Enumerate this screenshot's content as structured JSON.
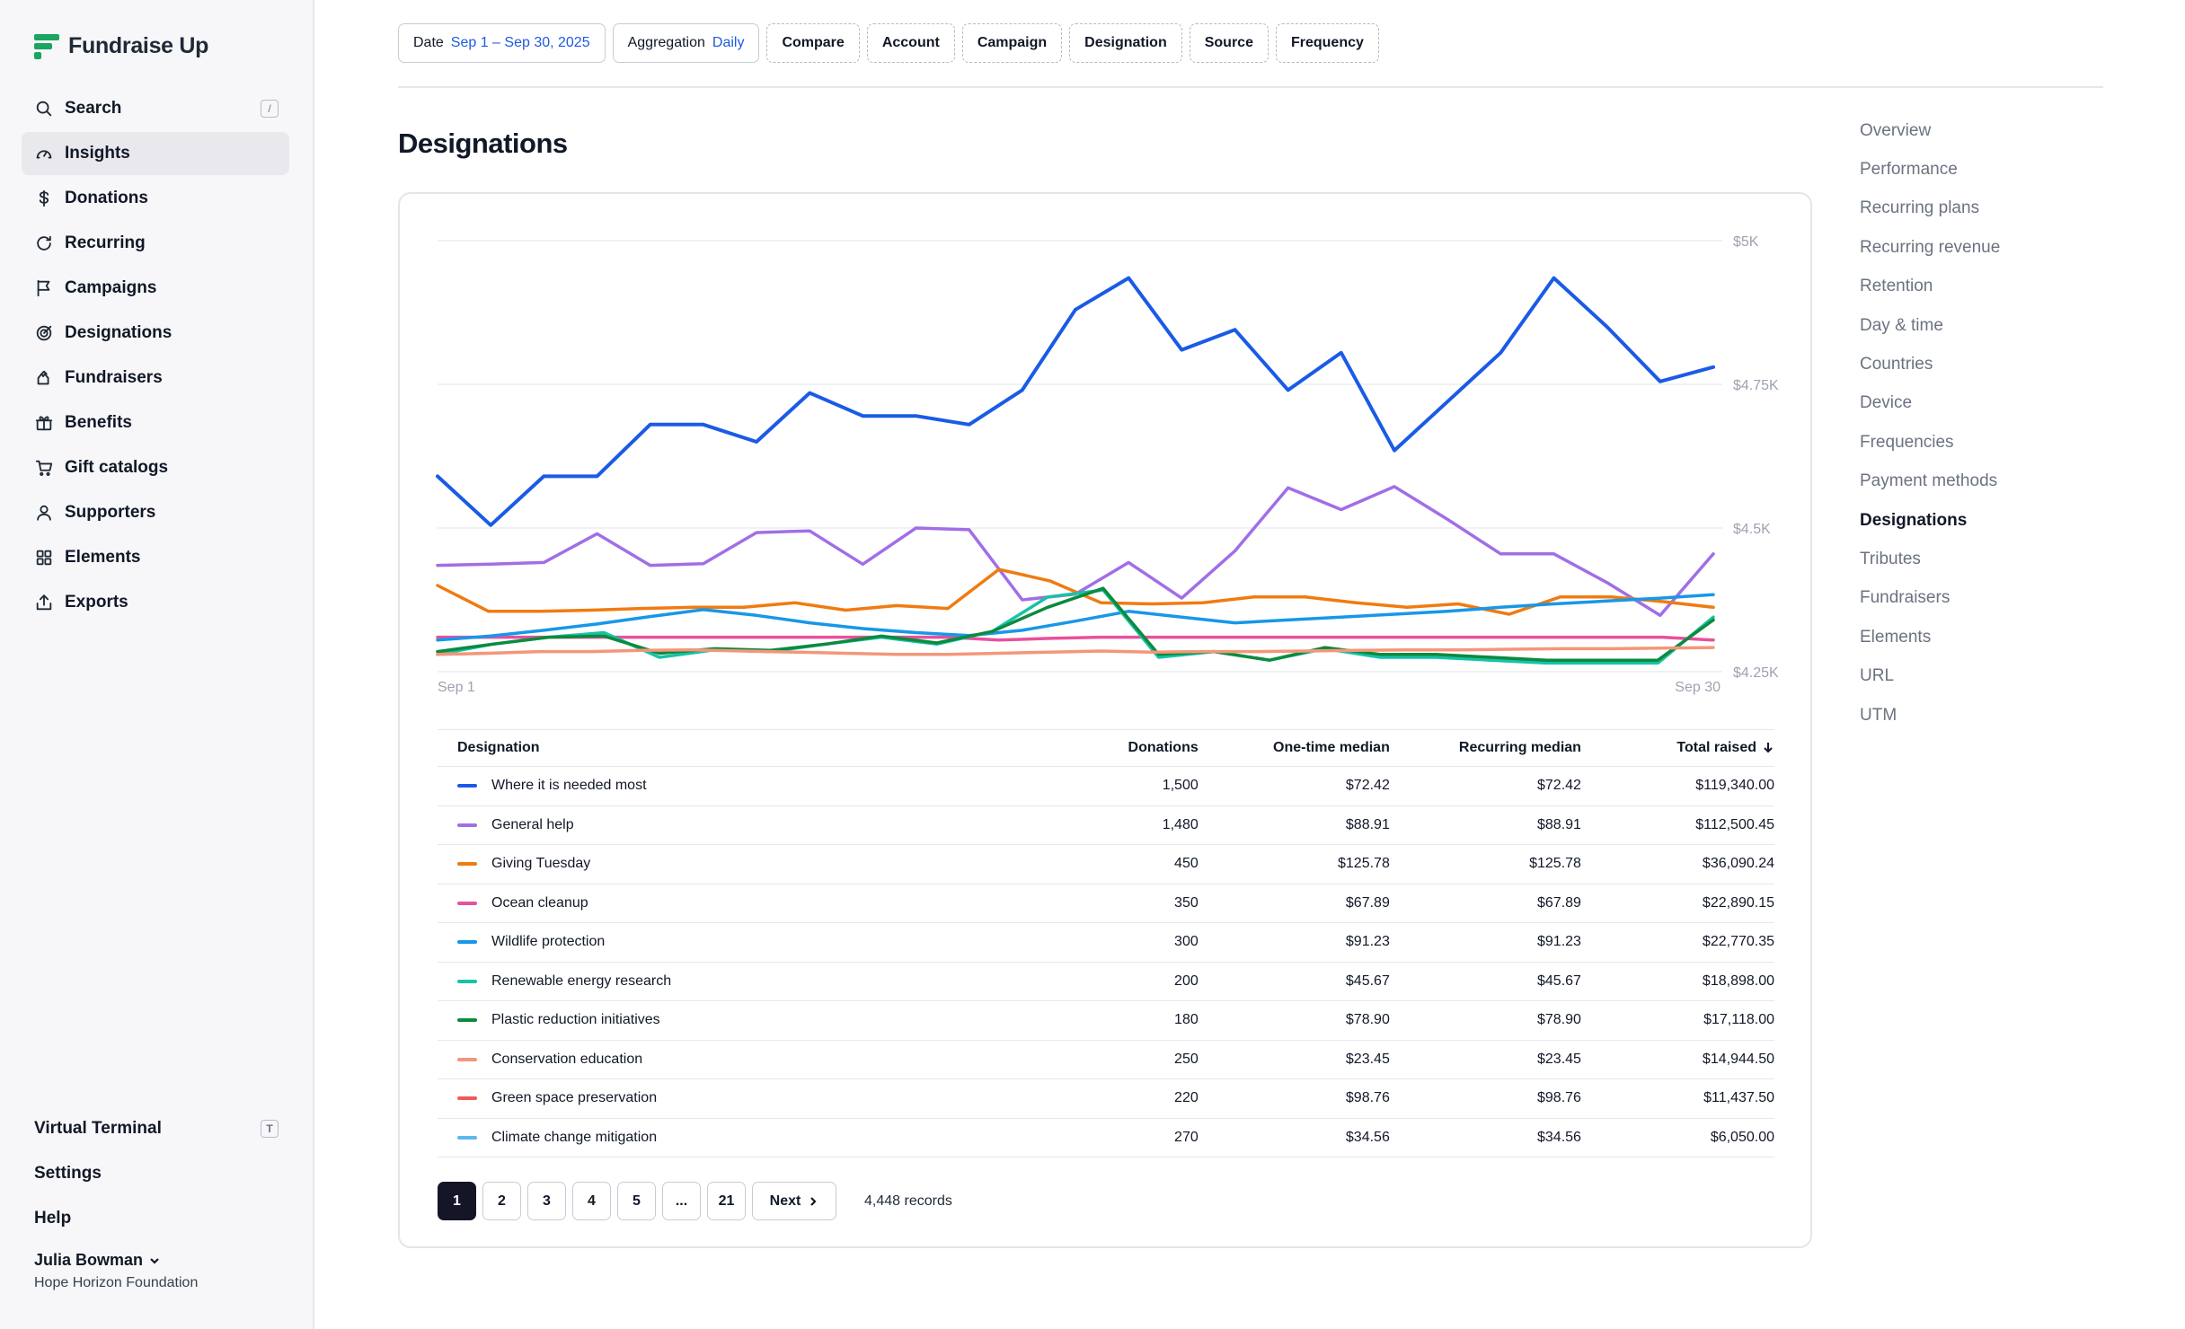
{
  "brand": {
    "name": "Fundraise Up",
    "color": "#1aa660"
  },
  "sidebar": {
    "items": [
      {
        "label": "Search",
        "icon": "search-icon",
        "kbd": "/"
      },
      {
        "label": "Insights",
        "icon": "gauge-icon",
        "active": true
      },
      {
        "label": "Donations",
        "icon": "dollar-icon"
      },
      {
        "label": "Recurring",
        "icon": "refresh-icon"
      },
      {
        "label": "Campaigns",
        "icon": "flag-icon"
      },
      {
        "label": "Designations",
        "icon": "target-icon"
      },
      {
        "label": "Fundraisers",
        "icon": "heart-hand-icon"
      },
      {
        "label": "Benefits",
        "icon": "gift-icon"
      },
      {
        "label": "Gift catalogs",
        "icon": "cart-icon"
      },
      {
        "label": "Supporters",
        "icon": "user-icon"
      },
      {
        "label": "Elements",
        "icon": "grid-icon"
      },
      {
        "label": "Exports",
        "icon": "export-icon"
      }
    ],
    "bottom": {
      "virtual_terminal": "Virtual Terminal",
      "virtual_terminal_kbd": "T",
      "settings": "Settings",
      "help": "Help"
    },
    "user": {
      "name": "Julia Bowman",
      "org": "Hope Horizon Foundation"
    }
  },
  "filters": {
    "date_label": "Date",
    "date_value": "Sep 1 – Sep 30, 2025",
    "aggregation_label": "Aggregation",
    "aggregation_value": "Daily",
    "compare": "Compare",
    "account": "Account",
    "campaign": "Campaign",
    "designation": "Designation",
    "source": "Source",
    "frequency": "Frequency"
  },
  "page_title": "Designations",
  "chart_data": {
    "type": "line",
    "x_start_label": "Sep 1",
    "x_end_label": "Sep 30",
    "y_ticks": [
      "$5K",
      "$4.75K",
      "$4.5K",
      "$4.25K"
    ],
    "ylim": [
      4250,
      5000
    ],
    "grid": true,
    "series": [
      {
        "name": "Where it is needed most",
        "color": "#1a5be6",
        "values": [
          4590,
          4505,
          4590,
          4590,
          4680,
          4680,
          4650,
          4735,
          4695,
          4695,
          4680,
          4740,
          4880,
          4935,
          4810,
          4845,
          4740,
          4805,
          4635,
          4720,
          4805,
          4935,
          4850,
          4755,
          4780
        ]
      },
      {
        "name": "General help",
        "color": "#a16ee6",
        "values": [
          4435,
          4437,
          4440,
          4490,
          4435,
          4438,
          4492,
          4495,
          4437,
          4500,
          4497,
          4375,
          4385,
          4440,
          4378,
          4460,
          4570,
          4532,
          4572,
          4515,
          4455,
          4455,
          4405,
          4348,
          4455
        ]
      },
      {
        "name": "Giving Tuesday",
        "color": "#f07b11",
        "values": [
          4400,
          4355,
          4355,
          4357,
          4360,
          4362,
          4362,
          4370,
          4357,
          4365,
          4360,
          4428,
          4408,
          4370,
          4368,
          4370,
          4380,
          4380,
          4370,
          4362,
          4368,
          4350,
          4380,
          4380,
          4372,
          4362
        ]
      },
      {
        "name": "Ocean cleanup",
        "color": "#e8509c",
        "values": [
          4310,
          4310,
          4310,
          4310,
          4310,
          4310,
          4310,
          4310,
          4310,
          4310,
          4310,
          4305,
          4308,
          4310,
          4310,
          4310,
          4310,
          4310,
          4310,
          4310,
          4310,
          4310,
          4310,
          4310,
          4310,
          4305
        ]
      },
      {
        "name": "Wildlife protection",
        "color": "#1897e8",
        "values": [
          4305,
          4312,
          4322,
          4333,
          4346,
          4358,
          4348,
          4335,
          4325,
          4318,
          4313,
          4322,
          4338,
          4355,
          4345,
          4335,
          4340,
          4345,
          4350,
          4355,
          4362,
          4368,
          4373,
          4378,
          4384
        ]
      },
      {
        "name": "Renewable energy research",
        "color": "#17c2a8",
        "values": [
          4280,
          4298,
          4310,
          4318,
          4275,
          4288,
          4285,
          4298,
          4310,
          4298,
          4320,
          4380,
          4392,
          4275,
          4285,
          4270,
          4290,
          4275,
          4275,
          4270,
          4265,
          4265,
          4265,
          4345
        ]
      },
      {
        "name": "Plastic reduction initiatives",
        "color": "#0d8a3d",
        "values": [
          4285,
          4298,
          4310,
          4312,
          4282,
          4290,
          4287,
          4298,
          4312,
          4300,
          4320,
          4362,
          4395,
          4280,
          4285,
          4270,
          4292,
          4280,
          4280,
          4275,
          4270,
          4270,
          4270,
          4340
        ]
      },
      {
        "name": "Conservation education",
        "color": "#f4967a",
        "values": [
          4280,
          4282,
          4285,
          4285,
          4287,
          4288,
          4286,
          4284,
          4282,
          4280,
          4280,
          4282,
          4284,
          4286,
          4284,
          4285,
          4285,
          4286,
          4287,
          4288,
          4288,
          4289,
          4290,
          4290,
          4291,
          4292
        ]
      },
      {
        "name": "Green space preservation",
        "color": "#f05a5a",
        "values": []
      },
      {
        "name": "Climate change mitigation",
        "color": "#5db8ee",
        "values": []
      }
    ]
  },
  "table": {
    "headers": {
      "designation": "Designation",
      "donations": "Donations",
      "one_time": "One-time median",
      "recurring": "Recurring median",
      "total": "Total raised"
    },
    "rows": [
      {
        "name": "Where it is needed most",
        "color": "#1a5be6",
        "donations": "1,500",
        "one_time": "$72.42",
        "recurring": "$72.42",
        "total": "$119,340.00"
      },
      {
        "name": "General help",
        "color": "#a16ee6",
        "donations": "1,480",
        "one_time": "$88.91",
        "recurring": "$88.91",
        "total": "$112,500.45"
      },
      {
        "name": "Giving Tuesday",
        "color": "#f07b11",
        "donations": "450",
        "one_time": "$125.78",
        "recurring": "$125.78",
        "total": "$36,090.24"
      },
      {
        "name": "Ocean cleanup",
        "color": "#e8509c",
        "donations": "350",
        "one_time": "$67.89",
        "recurring": "$67.89",
        "total": "$22,890.15"
      },
      {
        "name": "Wildlife protection",
        "color": "#1897e8",
        "donations": "300",
        "one_time": "$91.23",
        "recurring": "$91.23",
        "total": "$22,770.35"
      },
      {
        "name": "Renewable energy research",
        "color": "#17c2a8",
        "donations": "200",
        "one_time": "$45.67",
        "recurring": "$45.67",
        "total": "$18,898.00"
      },
      {
        "name": "Plastic reduction initiatives",
        "color": "#0d8a3d",
        "donations": "180",
        "one_time": "$78.90",
        "recurring": "$78.90",
        "total": "$17,118.00"
      },
      {
        "name": "Conservation education",
        "color": "#f4967a",
        "donations": "250",
        "one_time": "$23.45",
        "recurring": "$23.45",
        "total": "$14,944.50"
      },
      {
        "name": "Green space preservation",
        "color": "#f05a5a",
        "donations": "220",
        "one_time": "$98.76",
        "recurring": "$98.76",
        "total": "$11,437.50"
      },
      {
        "name": "Climate change mitigation",
        "color": "#5db8ee",
        "donations": "270",
        "one_time": "$34.56",
        "recurring": "$34.56",
        "total": "$6,050.00"
      }
    ]
  },
  "pagination": {
    "pages": [
      "1",
      "2",
      "3",
      "4",
      "5",
      "...",
      "21"
    ],
    "current": "1",
    "next": "Next",
    "records": "4,448 records"
  },
  "right_nav": {
    "items": [
      "Overview",
      "Performance",
      "Recurring plans",
      "Recurring revenue",
      "Retention",
      "Day & time",
      "Countries",
      "Device",
      "Frequencies",
      "Payment methods",
      "Designations",
      "Tributes",
      "Fundraisers",
      "Elements",
      "URL",
      "UTM"
    ],
    "active": "Designations"
  }
}
